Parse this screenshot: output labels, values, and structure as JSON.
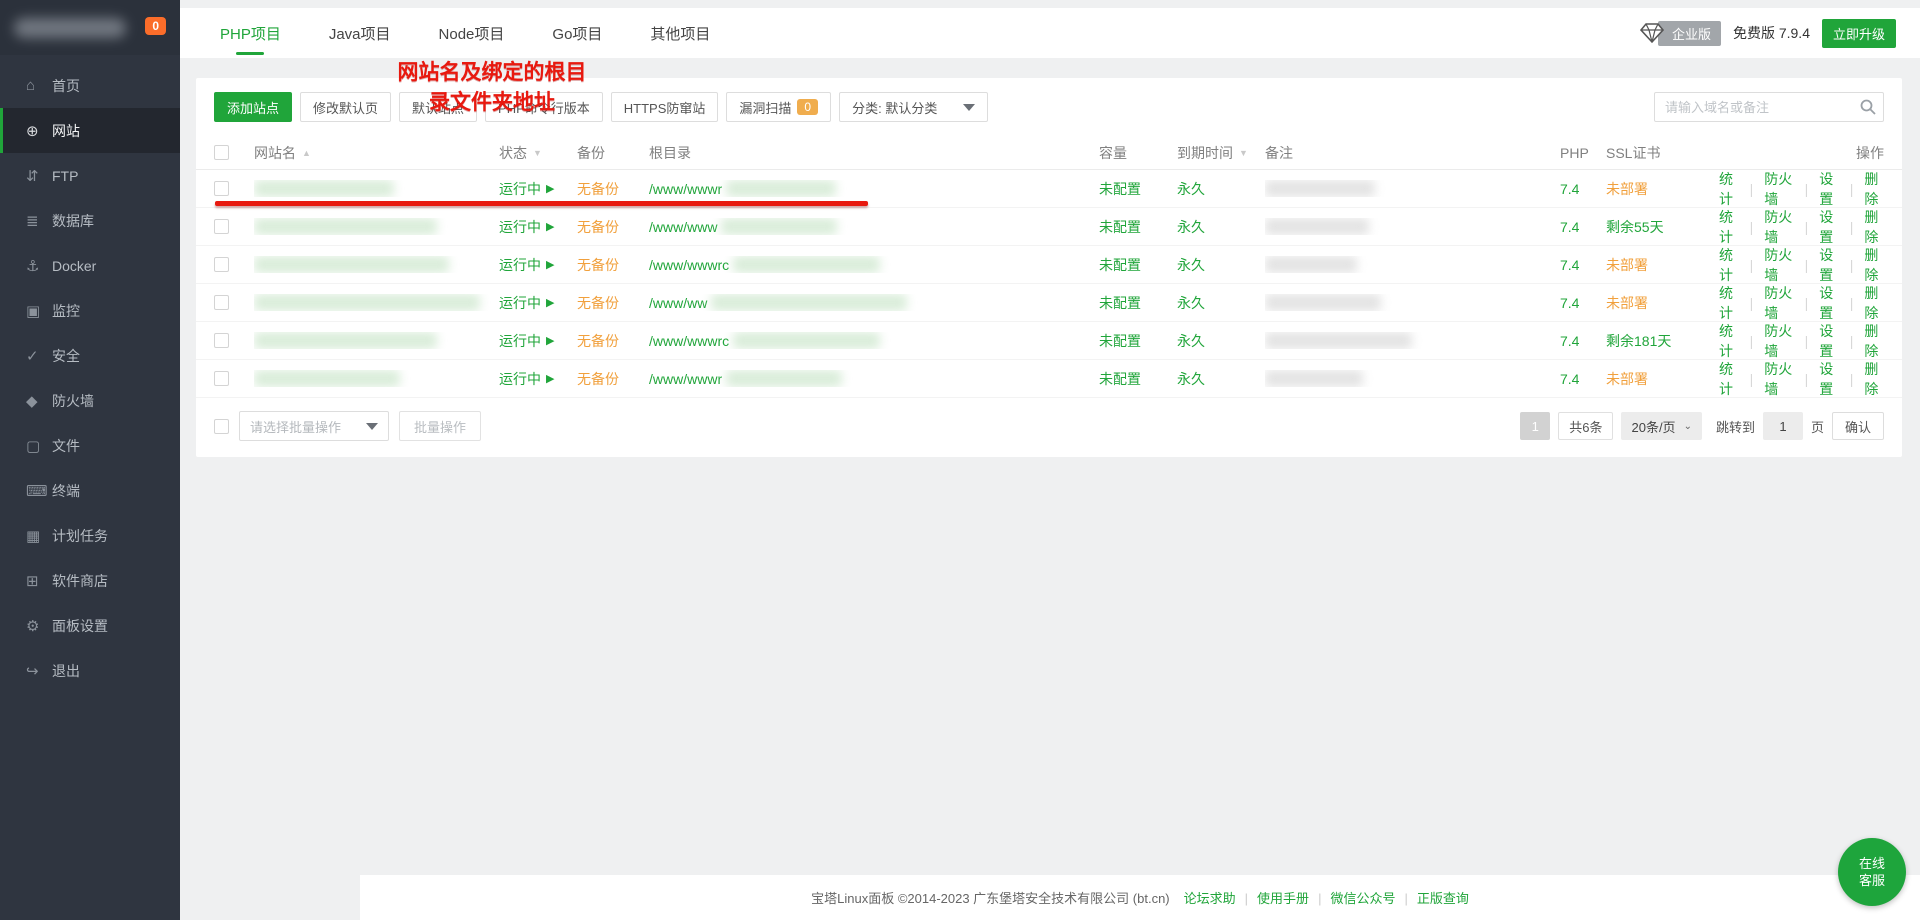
{
  "sidebar": {
    "badge": "0",
    "items": [
      {
        "key": "home",
        "icon": "home-icon",
        "glyph": "⌂",
        "label": "首页",
        "active": false
      },
      {
        "key": "website",
        "icon": "globe-icon",
        "glyph": "⊕",
        "label": "网站",
        "active": true
      },
      {
        "key": "ftp",
        "icon": "ftp-icon",
        "glyph": "⇵",
        "label": "FTP",
        "active": false
      },
      {
        "key": "database",
        "icon": "database-icon",
        "glyph": "≣",
        "label": "数据库",
        "active": false
      },
      {
        "key": "docker",
        "icon": "docker-whale-icon",
        "glyph": "⚓",
        "label": "Docker",
        "active": false
      },
      {
        "key": "monitor",
        "icon": "monitor-icon",
        "glyph": "▣",
        "label": "监控",
        "active": false
      },
      {
        "key": "security",
        "icon": "shield-check-icon",
        "glyph": "✓",
        "label": "安全",
        "active": false
      },
      {
        "key": "firewall",
        "icon": "shield-icon",
        "glyph": "◆",
        "label": "防火墙",
        "active": false
      },
      {
        "key": "files",
        "icon": "folder-icon",
        "glyph": "▢",
        "label": "文件",
        "active": false
      },
      {
        "key": "terminal",
        "icon": "terminal-icon",
        "glyph": "⌨",
        "label": "终端",
        "active": false
      },
      {
        "key": "cron",
        "icon": "calendar-icon",
        "glyph": "▦",
        "label": "计划任务",
        "active": false
      },
      {
        "key": "appstore",
        "icon": "grid-icon",
        "glyph": "⊞",
        "label": "软件商店",
        "active": false
      },
      {
        "key": "settings",
        "icon": "gear-icon",
        "glyph": "⚙",
        "label": "面板设置",
        "active": false
      },
      {
        "key": "logout",
        "icon": "logout-icon",
        "glyph": "↪",
        "label": "退出",
        "active": false
      }
    ]
  },
  "tabs": [
    {
      "key": "php",
      "label": "PHP项目",
      "active": true
    },
    {
      "key": "java",
      "label": "Java项目",
      "active": false
    },
    {
      "key": "node",
      "label": "Node项目",
      "active": false
    },
    {
      "key": "go",
      "label": "Go项目",
      "active": false
    },
    {
      "key": "other",
      "label": "其他项目",
      "active": false
    }
  ],
  "topbar": {
    "edition_badge": "企业版",
    "version_text": "免费版  7.9.4",
    "upgrade_label": "立即升级"
  },
  "toolbar": {
    "buttons": [
      {
        "key": "add-site",
        "label": "添加站点",
        "primary": true
      },
      {
        "key": "modify-default-page",
        "label": "修改默认页",
        "primary": false
      },
      {
        "key": "default-site",
        "label": "默认站点",
        "primary": false
      },
      {
        "key": "php-cli-version",
        "label": "PHP命令行版本",
        "primary": false
      },
      {
        "key": "https-anti-hijack",
        "label": "HTTPS防窜站",
        "primary": false
      }
    ],
    "scan_label": "漏洞扫描",
    "scan_badge": "0",
    "category_label": "分类: 默认分类"
  },
  "search": {
    "placeholder": "请输入域名或备注"
  },
  "table": {
    "columns": [
      {
        "label": "",
        "sort": null
      },
      {
        "label": "网站名",
        "sort": "asc"
      },
      {
        "label": "状态",
        "sort": "desc"
      },
      {
        "label": "备份",
        "sort": null
      },
      {
        "label": "根目录",
        "sort": null
      },
      {
        "label": "容量",
        "sort": null
      },
      {
        "label": "到期时间",
        "sort": "desc"
      },
      {
        "label": "备注",
        "sort": null
      },
      {
        "label": "PHP",
        "sort": null
      },
      {
        "label": "SSL证书",
        "sort": null
      },
      {
        "label": "操作",
        "sort": null
      }
    ],
    "action_labels": [
      "统计",
      "防火墙",
      "设置",
      "删除"
    ],
    "rows": [
      {
        "status": "运行中",
        "backup": "无备份",
        "root": "/www/wwwr",
        "capacity": "未配置",
        "expire": "永久",
        "php": "7.4",
        "ssl": "未部署",
        "ssl_ok": false
      },
      {
        "status": "运行中",
        "backup": "无备份",
        "root": "/www/www",
        "capacity": "未配置",
        "expire": "永久",
        "php": "7.4",
        "ssl": "剩余55天",
        "ssl_ok": true
      },
      {
        "status": "运行中",
        "backup": "无备份",
        "root": "/www/wwwrc",
        "capacity": "未配置",
        "expire": "永久",
        "php": "7.4",
        "ssl": "未部署",
        "ssl_ok": false
      },
      {
        "status": "运行中",
        "backup": "无备份",
        "root": "/www/ww",
        "capacity": "未配置",
        "expire": "永久",
        "php": "7.4",
        "ssl": "未部署",
        "ssl_ok": false
      },
      {
        "status": "运行中",
        "backup": "无备份",
        "root": "/www/wwwrc",
        "capacity": "未配置",
        "expire": "永久",
        "php": "7.4",
        "ssl": "剩余181天",
        "ssl_ok": true
      },
      {
        "status": "运行中",
        "backup": "无备份",
        "root": "/www/wwwr",
        "capacity": "未配置",
        "expire": "永久",
        "php": "7.4",
        "ssl": "未部署",
        "ssl_ok": false
      }
    ]
  },
  "batch": {
    "select_placeholder": "请选择批量操作",
    "button_label": "批量操作"
  },
  "pagination": {
    "page": "1",
    "total": "共6条",
    "per_page": "20条/页",
    "jump_label": "跳转到",
    "jump_value": "1",
    "page_suffix": "页",
    "confirm_label": "确认"
  },
  "annotation": {
    "line1": "网站名及绑定的根目",
    "line2": "录文件夹地址"
  },
  "footer": {
    "copyright": "宝塔Linux面板 ©2014-2023 广东堡塔安全技术有限公司 (bt.cn)",
    "links": [
      "论坛求助",
      "使用手册",
      "微信公众号",
      "正版查询"
    ]
  },
  "support_button": {
    "line1": "在线",
    "line2": "客服"
  },
  "colors": {
    "accent_green": "#20a53a",
    "warn_orange": "#f1a03c",
    "annotation_red": "#e8190f",
    "sidebar_bg": "#2f3540"
  }
}
